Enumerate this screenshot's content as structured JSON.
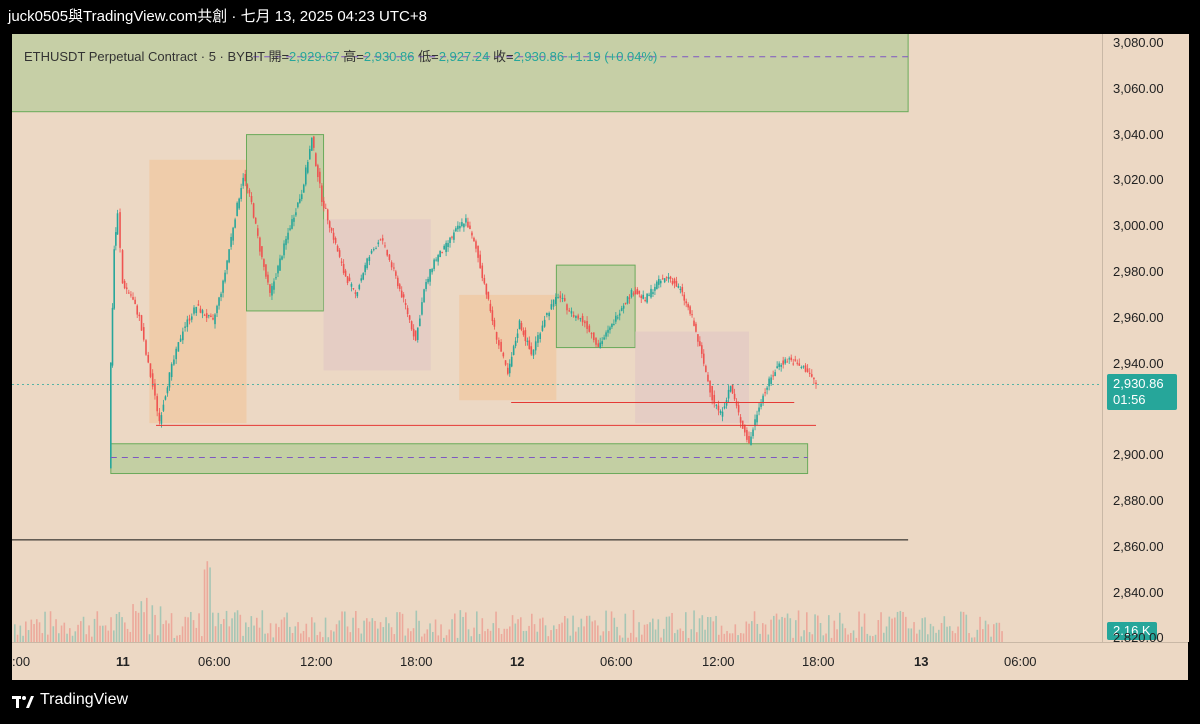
{
  "header": {
    "title": "juck0505與TradingView.com共創 · 七月 13, 2025 04:23 UTC+8"
  },
  "legend": {
    "symbol": "ETHUSDT Perpetual Contract · 5 · BYBIT",
    "open_label": "開=",
    "open": "2,929.67",
    "high_label": "高=",
    "high": "2,930.86",
    "low_label": "低=",
    "low": "2,927.24",
    "close_label": "收=",
    "close": "2,930.86",
    "change": "+1.19 (+0.04%)"
  },
  "badges": {
    "price": "2,930.86",
    "countdown": "01:56",
    "volume": "2.16 K"
  },
  "footer": {
    "brand": "TradingView"
  },
  "colors": {
    "up": "#26a69a",
    "down": "#ef5350",
    "background": "#ecd8c4",
    "zone_green": "#a8c98e"
  },
  "chart_data": {
    "type": "candlestick",
    "y_ticks": [
      "3,080.00",
      "3,060.00",
      "3,040.00",
      "3,020.00",
      "3,000.00",
      "2,980.00",
      "2,960.00",
      "2,940.00",
      "2,900.00",
      "2,880.00",
      "2,860.00",
      "2,840.00",
      "2,820.00"
    ],
    "x_ticks": [
      ":00",
      "11",
      "06:00",
      "12:00",
      "18:00",
      "12",
      "06:00",
      "12:00",
      "18:00",
      "13",
      "06:00"
    ],
    "ylim": [
      2815,
      3095
    ],
    "price_path": [
      [
        5.8,
        2895
      ],
      [
        5.9,
        2940
      ],
      [
        6.1,
        2990
      ],
      [
        6.3,
        3005
      ],
      [
        6.6,
        2975
      ],
      [
        7.1,
        2970
      ],
      [
        7.6,
        2960
      ],
      [
        8.0,
        2944
      ],
      [
        8.4,
        2930
      ],
      [
        8.8,
        2915
      ],
      [
        9.4,
        2935
      ],
      [
        10.2,
        2955
      ],
      [
        11.0,
        2965
      ],
      [
        12.0,
        2958
      ],
      [
        12.6,
        2975
      ],
      [
        13.2,
        3000
      ],
      [
        13.8,
        3022
      ],
      [
        14.3,
        3010
      ],
      [
        14.8,
        2990
      ],
      [
        15.4,
        2970
      ],
      [
        16.0,
        2985
      ],
      [
        16.6,
        3000
      ],
      [
        17.3,
        3015
      ],
      [
        17.9,
        3038
      ],
      [
        18.5,
        3012
      ],
      [
        19.2,
        2995
      ],
      [
        19.8,
        2980
      ],
      [
        20.5,
        2970
      ],
      [
        21.2,
        2985
      ],
      [
        22.0,
        2995
      ],
      [
        22.8,
        2980
      ],
      [
        23.5,
        2965
      ],
      [
        24.1,
        2950
      ],
      [
        24.6,
        2972
      ],
      [
        25.2,
        2985
      ],
      [
        25.8,
        2990
      ],
      [
        26.5,
        2998
      ],
      [
        27.1,
        3003
      ],
      [
        27.7,
        2990
      ],
      [
        28.2,
        2975
      ],
      [
        28.8,
        2955
      ],
      [
        29.6,
        2935
      ],
      [
        30.3,
        2958
      ],
      [
        31.0,
        2944
      ],
      [
        31.8,
        2960
      ],
      [
        32.6,
        2970
      ],
      [
        33.4,
        2962
      ],
      [
        34.2,
        2958
      ],
      [
        35.0,
        2948
      ],
      [
        35.7,
        2955
      ],
      [
        36.4,
        2965
      ],
      [
        37.1,
        2972
      ],
      [
        37.8,
        2968
      ],
      [
        38.5,
        2975
      ],
      [
        39.2,
        2978
      ],
      [
        39.9,
        2972
      ],
      [
        40.6,
        2960
      ],
      [
        41.3,
        2940
      ],
      [
        41.8,
        2925
      ],
      [
        42.3,
        2918
      ],
      [
        42.9,
        2930
      ],
      [
        43.5,
        2915
      ],
      [
        44.0,
        2905
      ],
      [
        44.6,
        2922
      ],
      [
        45.2,
        2932
      ],
      [
        45.8,
        2940
      ],
      [
        46.4,
        2942
      ],
      [
        47.0,
        2939
      ],
      [
        47.5,
        2937
      ],
      [
        48.0,
        2931
      ]
    ],
    "rectangles": [
      {
        "x1": -1.0,
        "x2": 53.5,
        "y1": 3050,
        "y2": 3095,
        "kind": "green"
      },
      {
        "x1": 8.2,
        "x2": 14.0,
        "y1": 2914,
        "y2": 3029,
        "kind": "orange"
      },
      {
        "x1": 14.0,
        "x2": 18.6,
        "y1": 2963,
        "y2": 3040,
        "kind": "green"
      },
      {
        "x1": 18.6,
        "x2": 25.0,
        "y1": 2937,
        "y2": 3003,
        "kind": "pink"
      },
      {
        "x1": 26.7,
        "x2": 32.5,
        "y1": 2924,
        "y2": 2970,
        "kind": "orange"
      },
      {
        "x1": 32.5,
        "x2": 37.2,
        "y1": 2947,
        "y2": 2983,
        "kind": "green"
      },
      {
        "x1": 37.2,
        "x2": 44.0,
        "y1": 2914,
        "y2": 2954,
        "kind": "pink"
      },
      {
        "x1": 5.9,
        "x2": 47.5,
        "y1": 2892,
        "y2": 2905,
        "kind": "zone"
      }
    ],
    "lines": [
      {
        "x1": 8.6,
        "x2": 48.0,
        "y": 2913,
        "kind": "red"
      },
      {
        "x1": 29.8,
        "x2": 46.7,
        "y": 2923,
        "kind": "red"
      },
      {
        "x1": -1.0,
        "x2": 53.5,
        "y": 2863,
        "kind": "black"
      },
      {
        "x1": 5.9,
        "x2": 47.5,
        "y": 2899,
        "kind": "dash"
      },
      {
        "x1": 14.4,
        "x2": 53.5,
        "y": 3074,
        "kind": "dash"
      }
    ],
    "last_price": 2930.86
  }
}
